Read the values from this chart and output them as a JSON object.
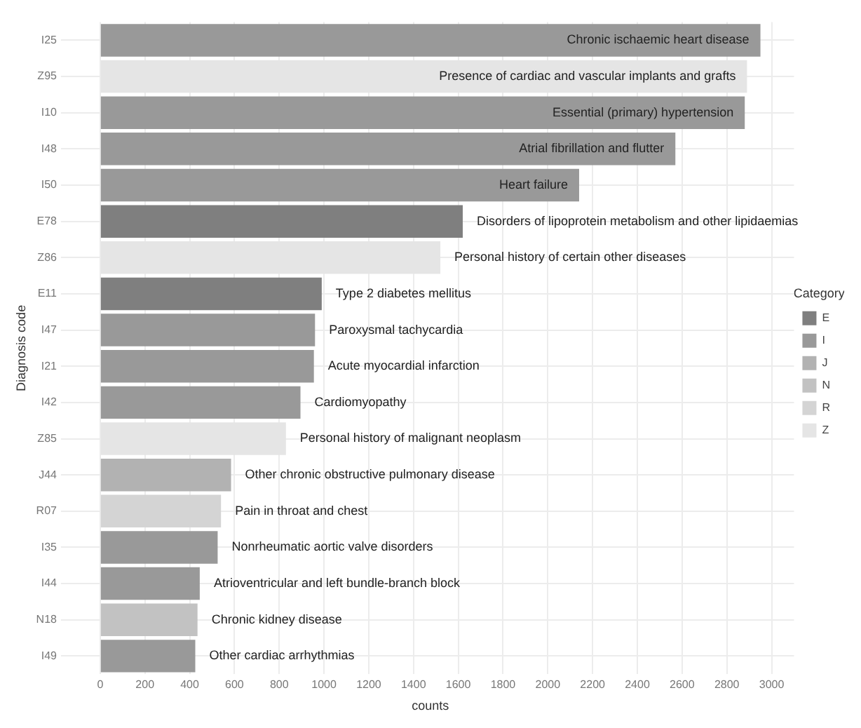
{
  "chart_data": {
    "type": "bar",
    "orientation": "horizontal",
    "xlabel": "counts",
    "ylabel": "Diagnosis code",
    "legend_title": "Category",
    "legend": "right",
    "grid": true,
    "categories": [
      "I25",
      "Z95",
      "I10",
      "I48",
      "I50",
      "E78",
      "Z86",
      "E11",
      "I47",
      "I21",
      "I42",
      "Z85",
      "J44",
      "R07",
      "I35",
      "I44",
      "N18",
      "I49"
    ],
    "series": [
      {
        "name": "E",
        "color": "#7f7f7f",
        "values": [
          null,
          null,
          null,
          null,
          null,
          1620,
          null,
          990,
          null,
          null,
          null,
          null,
          null,
          null,
          null,
          null,
          null,
          null
        ]
      },
      {
        "name": "I",
        "color": "#999999",
        "values": [
          2950,
          null,
          2880,
          2570,
          2140,
          null,
          null,
          null,
          960,
          955,
          895,
          null,
          null,
          null,
          525,
          445,
          null,
          425
        ]
      },
      {
        "name": "J",
        "color": "#b2b2b2",
        "values": [
          null,
          null,
          null,
          null,
          null,
          null,
          null,
          null,
          null,
          null,
          null,
          null,
          585,
          null,
          null,
          null,
          null,
          null
        ]
      },
      {
        "name": "N",
        "color": "#c2c2c2",
        "values": [
          null,
          null,
          null,
          null,
          null,
          null,
          null,
          null,
          null,
          null,
          null,
          null,
          null,
          null,
          null,
          null,
          435,
          null
        ]
      },
      {
        "name": "R",
        "color": "#d4d4d4",
        "values": [
          null,
          null,
          null,
          null,
          null,
          null,
          null,
          null,
          null,
          null,
          null,
          null,
          null,
          540,
          null,
          null,
          null,
          null
        ]
      },
      {
        "name": "Z",
        "color": "#e5e5e5",
        "values": [
          null,
          2890,
          null,
          null,
          null,
          null,
          1520,
          null,
          null,
          null,
          null,
          830,
          null,
          null,
          null,
          null,
          null,
          null
        ]
      }
    ],
    "xlim": [
      -150,
      3100
    ],
    "xticks": [
      0,
      200,
      400,
      600,
      800,
      1000,
      1200,
      1400,
      1600,
      1800,
      2000,
      2200,
      2400,
      2600,
      2800,
      3000
    ],
    "annotations": [
      {
        "text": "Chronic ischaemic heart disease",
        "x": 2950,
        "y": "I25"
      },
      {
        "text": "Presence of cardiac and vascular implants and grafts",
        "x": 2890,
        "y": "Z95"
      },
      {
        "text": "Essential (primary) hypertension",
        "x": 2880,
        "y": "I10"
      },
      {
        "text": "Atrial fibrillation and flutter",
        "x": 2570,
        "y": "I48"
      },
      {
        "text": "Heart failure",
        "x": 2140,
        "y": "I50"
      },
      {
        "text": "Disorders of lipoprotein metabolism and other lipidaemias",
        "x": 1620,
        "y": "E78"
      },
      {
        "text": "Personal history of certain other diseases",
        "x": 1520,
        "y": "Z86"
      },
      {
        "text": "Type 2 diabetes mellitus",
        "x": 990,
        "y": "E11"
      },
      {
        "text": "Paroxysmal tachycardia",
        "x": 960,
        "y": "I47"
      },
      {
        "text": "Acute myocardial infarction",
        "x": 955,
        "y": "I21"
      },
      {
        "text": "Cardiomyopathy",
        "x": 895,
        "y": "I42"
      },
      {
        "text": "Personal history of malignant neoplasm",
        "x": 830,
        "y": "Z85"
      },
      {
        "text": "Other chronic obstructive pulmonary disease",
        "x": 585,
        "y": "J44"
      },
      {
        "text": "Pain in throat and chest",
        "x": 540,
        "y": "R07"
      },
      {
        "text": "Nonrheumatic aortic valve disorders",
        "x": 525,
        "y": "I35"
      },
      {
        "text": "Atrioventricular and left bundle-branch block",
        "x": 445,
        "y": "I44"
      },
      {
        "text": "Chronic kidney disease",
        "x": 435,
        "y": "N18"
      },
      {
        "text": "Other cardiac arrhythmias",
        "x": 425,
        "y": "I49"
      }
    ]
  }
}
